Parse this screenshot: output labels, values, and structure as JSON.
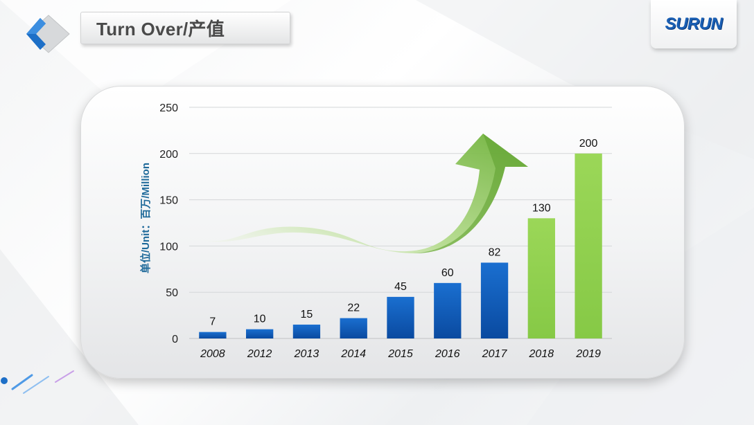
{
  "header": {
    "title": "Turn Over/产值"
  },
  "logo": {
    "text": "SURUN",
    "color": "#1a5fb4"
  },
  "chart_data": {
    "type": "bar",
    "categories": [
      "2008",
      "2012",
      "2013",
      "2014",
      "2015",
      "2016",
      "2017",
      "2018",
      "2019"
    ],
    "values": [
      7,
      10,
      15,
      22,
      45,
      60,
      82,
      130,
      200
    ],
    "bar_colors": [
      "#0b5fc0",
      "#0b5fc0",
      "#0b5fc0",
      "#0b5fc0",
      "#0b5fc0",
      "#0b5fc0",
      "#0b5fc0",
      "#8fd14f",
      "#8fd14f"
    ],
    "ylabel": "单位/Unit：百万/Million",
    "ylim": [
      0,
      250
    ],
    "yticks": [
      0,
      50,
      100,
      150,
      200,
      250
    ],
    "grid": true,
    "annotations": [
      "growth-arrow-icon"
    ]
  }
}
